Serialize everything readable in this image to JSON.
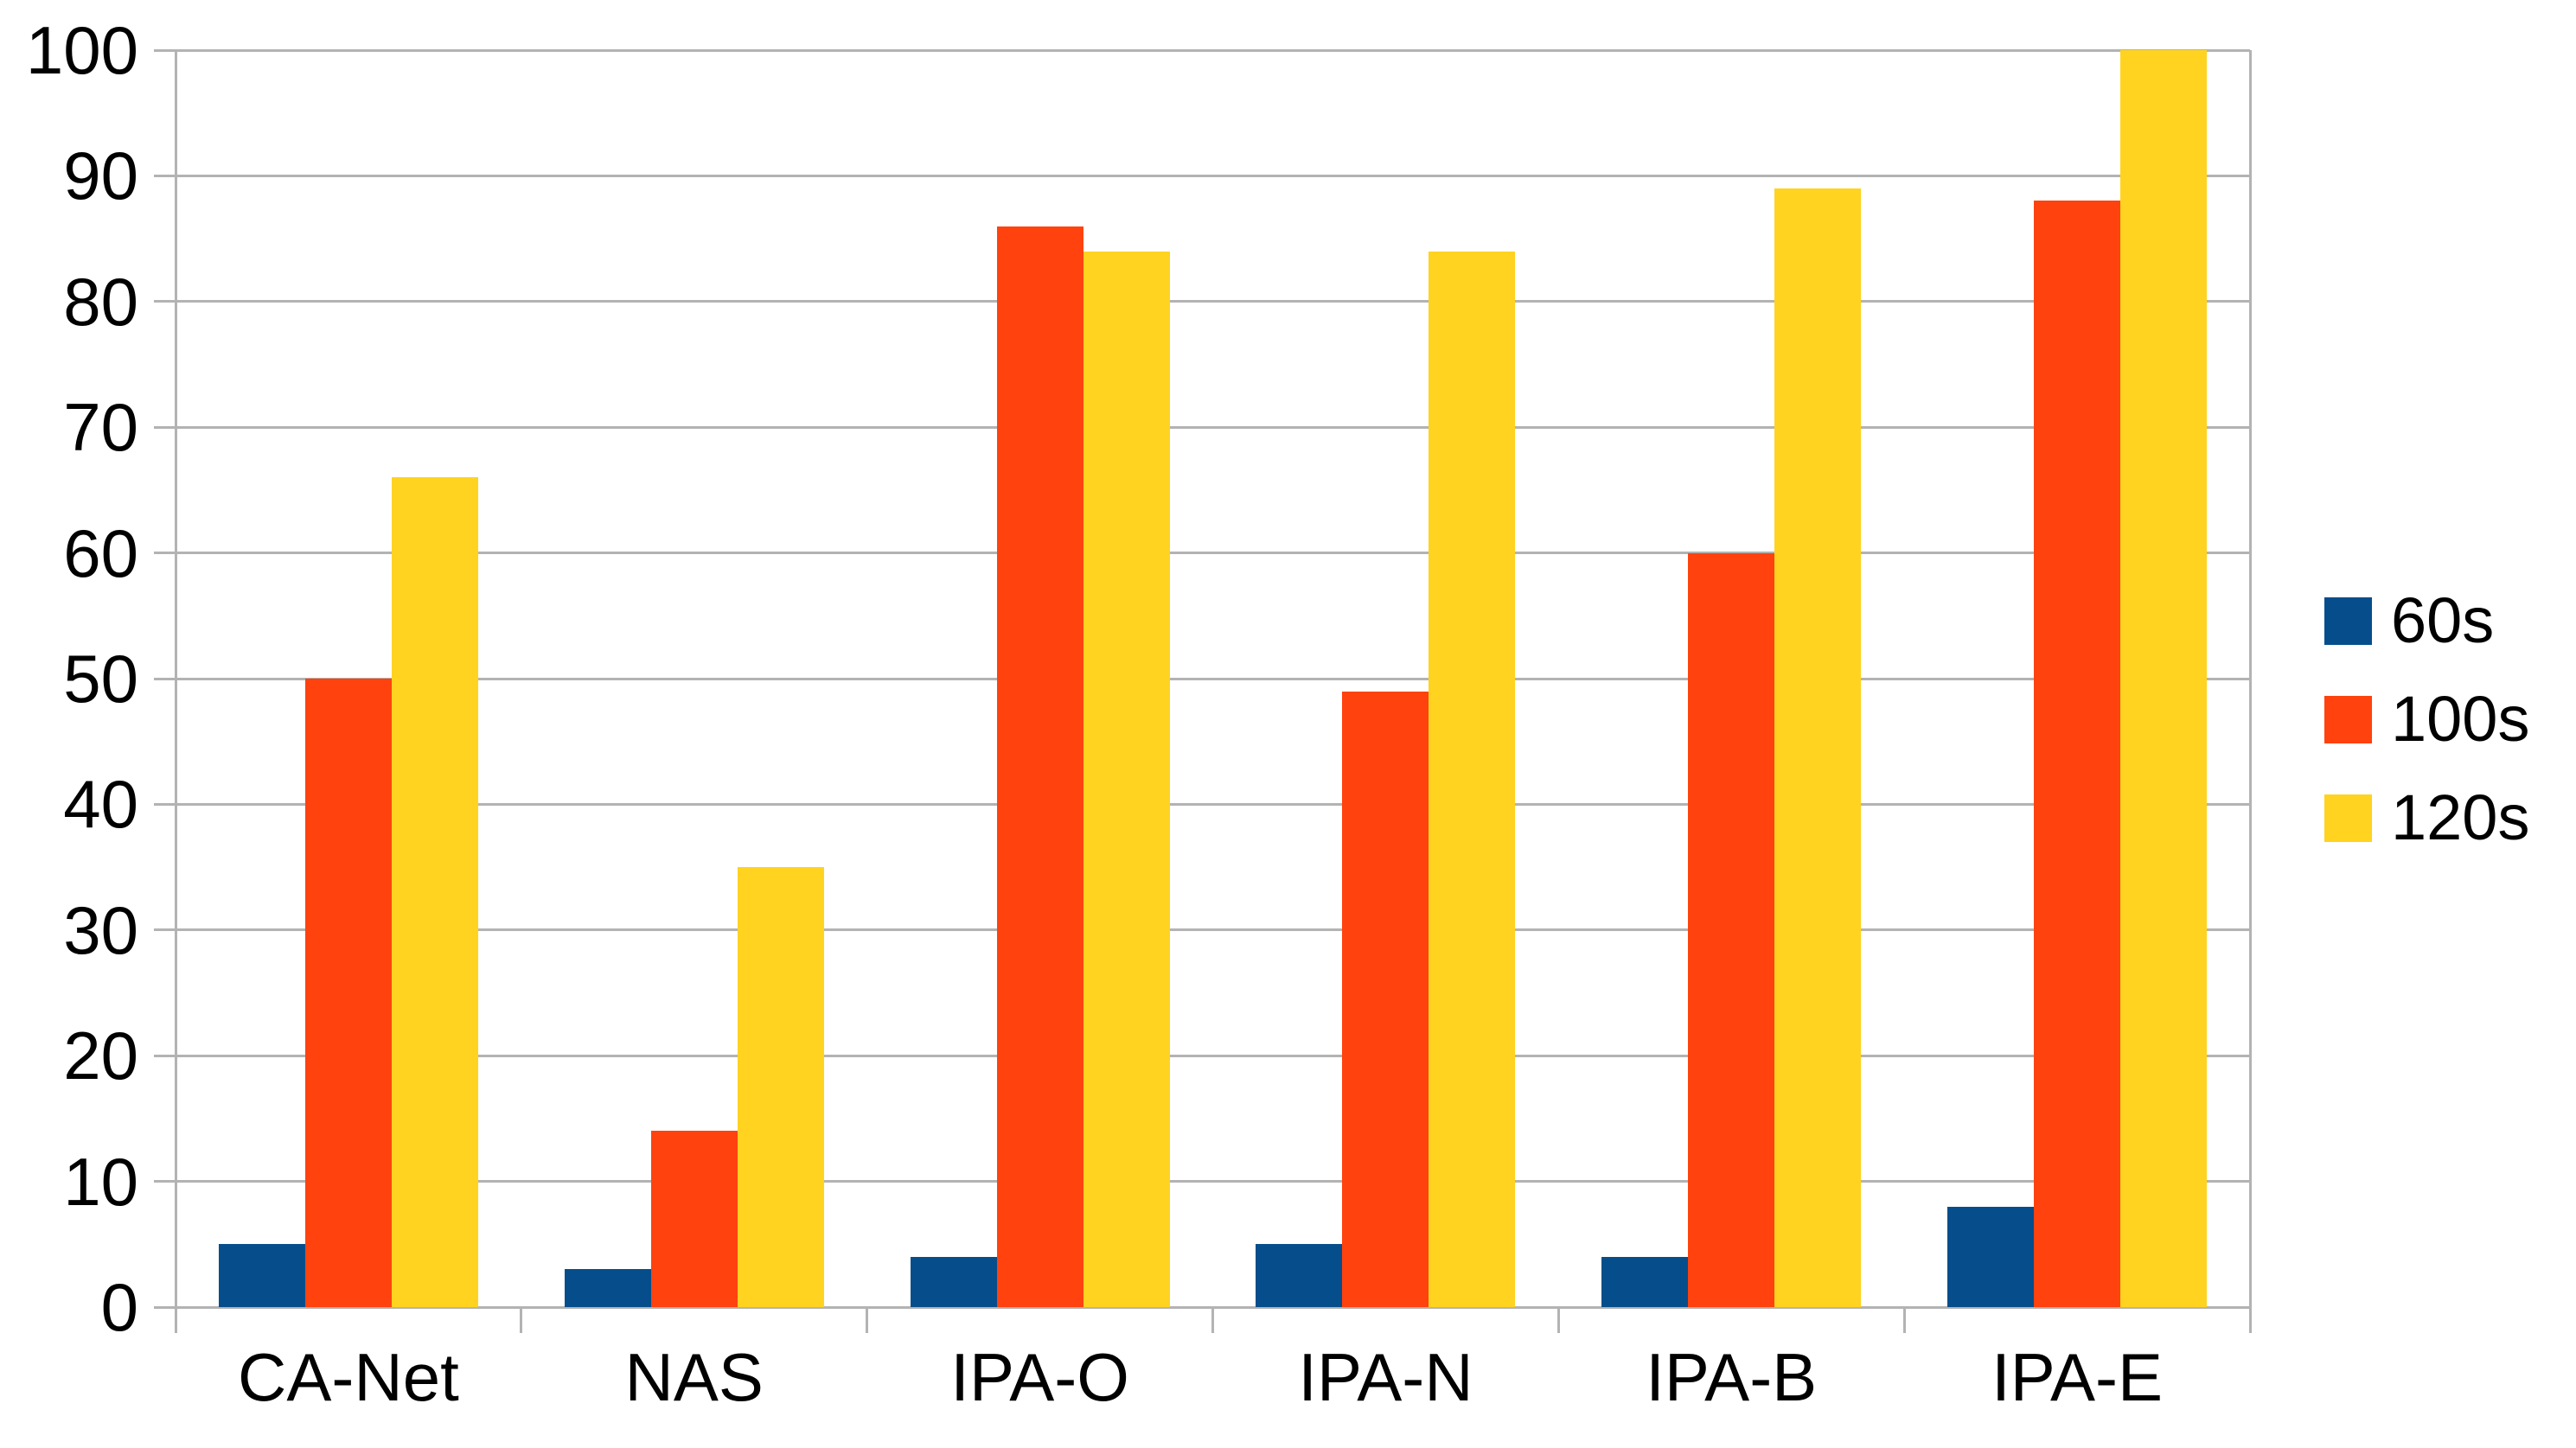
{
  "chart_data": {
    "type": "bar",
    "title": "",
    "categories": [
      "CA-Net",
      "NAS",
      "IPA-O",
      "IPA-N",
      "IPA-B",
      "IPA-E"
    ],
    "series": [
      {
        "name": "60s",
        "color": "#064E8B",
        "values": [
          5,
          3,
          4,
          5,
          4,
          8
        ]
      },
      {
        "name": "100s",
        "color": "#FF420E",
        "values": [
          50,
          14,
          86,
          49,
          60,
          88
        ]
      },
      {
        "name": "120s",
        "color": "#FFD320",
        "values": [
          66,
          35,
          84,
          84,
          89,
          100
        ]
      }
    ],
    "xlabel": "",
    "ylabel": "",
    "y_axis": {
      "min": 0,
      "max": 100,
      "step": 10,
      "tick_labels": [
        "0",
        "10",
        "20",
        "30",
        "40",
        "50",
        "60",
        "70",
        "80",
        "90",
        "100"
      ]
    },
    "legend": {
      "position": "right",
      "labels": [
        "60s",
        "100s",
        "120s"
      ]
    },
    "grid": {
      "horizontal": true,
      "color": "#B3B3B3"
    },
    "axis_color": "#B3B3B3",
    "background": "#FFFFFF",
    "text_color": "#000000"
  }
}
